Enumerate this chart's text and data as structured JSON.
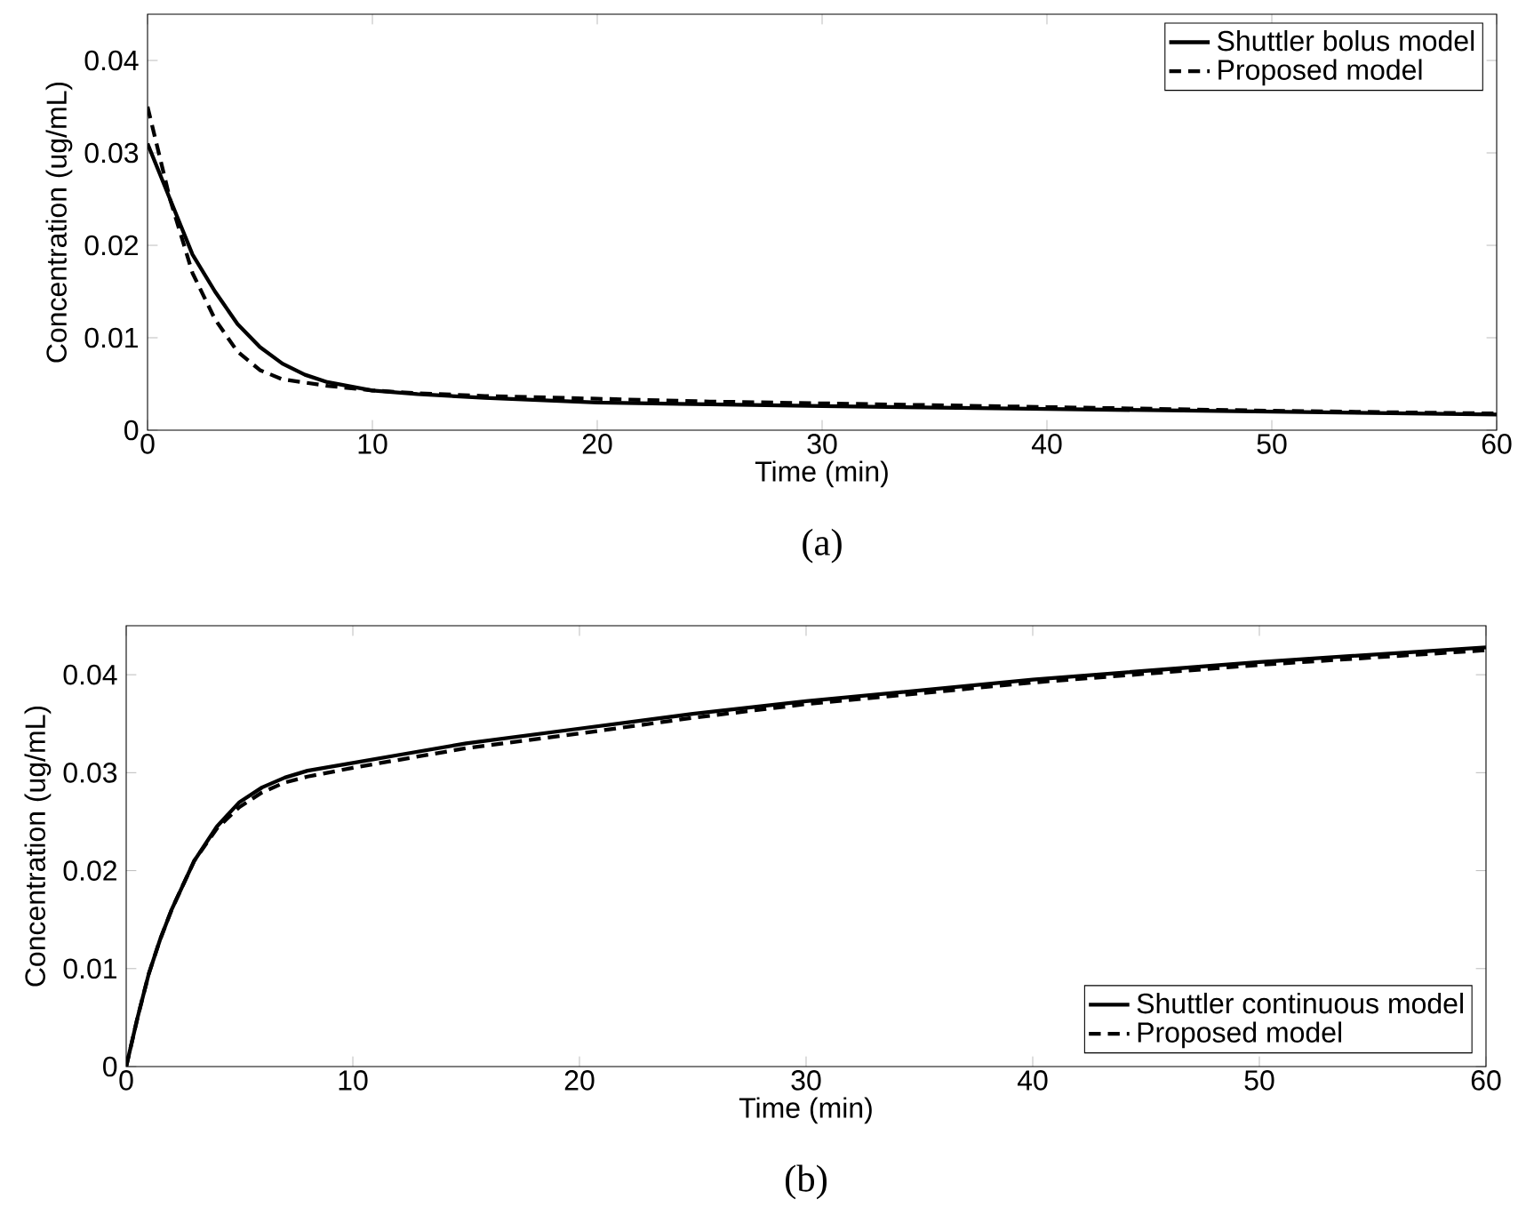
{
  "chart_data": [
    {
      "type": "line",
      "xlabel": "Time (min)",
      "ylabel": "Concentration (ug/mL)",
      "xlim": [
        0,
        60
      ],
      "ylim": [
        0,
        0.045
      ],
      "xticks": [
        0,
        10,
        20,
        30,
        40,
        50,
        60
      ],
      "yticks": [
        0,
        0.01,
        0.02,
        0.03,
        0.04
      ],
      "legend": "top right",
      "marker": "none",
      "annotations": [
        "(a)"
      ],
      "series": [
        {
          "name": "Shuttler bolus model",
          "color": "#000000",
          "line_style": "solid",
          "x": [
            0,
            0.5,
            1,
            1.5,
            2,
            3,
            4,
            5,
            6,
            7,
            8,
            10,
            12,
            15,
            20,
            25,
            30,
            40,
            50,
            60
          ],
          "values": [
            0.031,
            0.028,
            0.025,
            0.022,
            0.019,
            0.015,
            0.0115,
            0.009,
            0.0072,
            0.006,
            0.0052,
            0.0043,
            0.0039,
            0.0035,
            0.003,
            0.0028,
            0.0026,
            0.0023,
            0.002,
            0.0017
          ]
        },
        {
          "name": "Proposed model",
          "color": "#000000",
          "line_style": "dashed",
          "x": [
            0,
            0.5,
            1,
            1.5,
            2,
            3,
            4,
            5,
            6,
            8,
            10,
            12,
            15,
            20,
            25,
            30,
            40,
            50,
            60
          ],
          "values": [
            0.035,
            0.03,
            0.025,
            0.021,
            0.017,
            0.012,
            0.0085,
            0.0065,
            0.0055,
            0.0048,
            0.0043,
            0.004,
            0.0037,
            0.0034,
            0.0031,
            0.0029,
            0.0025,
            0.0021,
            0.0018
          ]
        }
      ]
    },
    {
      "type": "line",
      "xlabel": "Time (min)",
      "ylabel": "Concentration (ug/mL)",
      "xlim": [
        0,
        60
      ],
      "ylim": [
        0,
        0.045
      ],
      "xticks": [
        0,
        10,
        20,
        30,
        40,
        50,
        60
      ],
      "yticks": [
        0,
        0.01,
        0.02,
        0.03,
        0.04
      ],
      "legend": "bottom right",
      "marker": "none",
      "annotations": [
        "(b)"
      ],
      "series": [
        {
          "name": "Shuttler continuous model",
          "color": "#000000",
          "line_style": "solid",
          "x": [
            0,
            0.5,
            1,
            1.5,
            2,
            3,
            4,
            5,
            6,
            7,
            8,
            10,
            12,
            15,
            20,
            25,
            30,
            40,
            50,
            60
          ],
          "values": [
            0,
            0.005,
            0.0095,
            0.013,
            0.016,
            0.021,
            0.0245,
            0.027,
            0.0285,
            0.0295,
            0.0302,
            0.031,
            0.0318,
            0.033,
            0.0345,
            0.036,
            0.0373,
            0.0395,
            0.0413,
            0.0428
          ]
        },
        {
          "name": "Proposed model",
          "color": "#000000",
          "line_style": "dashed",
          "x": [
            0,
            0.5,
            1,
            1.5,
            2,
            3,
            4,
            5,
            6,
            7,
            8,
            10,
            12,
            15,
            20,
            25,
            30,
            40,
            50,
            60
          ],
          "values": [
            0,
            0.005,
            0.0095,
            0.013,
            0.016,
            0.021,
            0.0243,
            0.0265,
            0.028,
            0.029,
            0.0296,
            0.0305,
            0.0313,
            0.0325,
            0.034,
            0.0356,
            0.037,
            0.0392,
            0.041,
            0.0425
          ]
        }
      ]
    }
  ]
}
